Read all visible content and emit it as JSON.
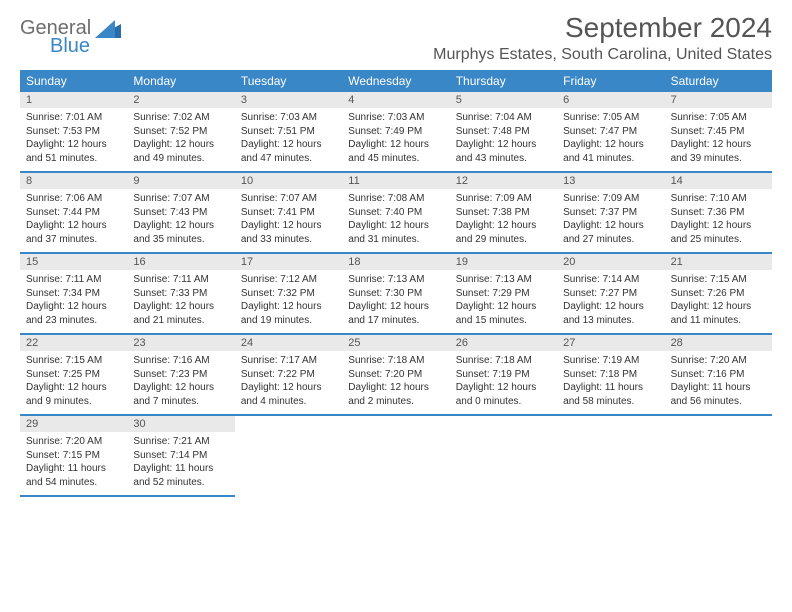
{
  "logo": {
    "general": "General",
    "blue": "Blue"
  },
  "title": "September 2024",
  "location": "Murphys Estates, South Carolina, United States",
  "colors": {
    "headerBg": "#3a87c8",
    "dayNumBg": "#e9e9e9",
    "border": "#3a87c8"
  },
  "dayHeaders": [
    "Sunday",
    "Monday",
    "Tuesday",
    "Wednesday",
    "Thursday",
    "Friday",
    "Saturday"
  ],
  "weeks": [
    [
      {
        "num": "1",
        "sunrise": "Sunrise: 7:01 AM",
        "sunset": "Sunset: 7:53 PM",
        "daylight": "Daylight: 12 hours and 51 minutes."
      },
      {
        "num": "2",
        "sunrise": "Sunrise: 7:02 AM",
        "sunset": "Sunset: 7:52 PM",
        "daylight": "Daylight: 12 hours and 49 minutes."
      },
      {
        "num": "3",
        "sunrise": "Sunrise: 7:03 AM",
        "sunset": "Sunset: 7:51 PM",
        "daylight": "Daylight: 12 hours and 47 minutes."
      },
      {
        "num": "4",
        "sunrise": "Sunrise: 7:03 AM",
        "sunset": "Sunset: 7:49 PM",
        "daylight": "Daylight: 12 hours and 45 minutes."
      },
      {
        "num": "5",
        "sunrise": "Sunrise: 7:04 AM",
        "sunset": "Sunset: 7:48 PM",
        "daylight": "Daylight: 12 hours and 43 minutes."
      },
      {
        "num": "6",
        "sunrise": "Sunrise: 7:05 AM",
        "sunset": "Sunset: 7:47 PM",
        "daylight": "Daylight: 12 hours and 41 minutes."
      },
      {
        "num": "7",
        "sunrise": "Sunrise: 7:05 AM",
        "sunset": "Sunset: 7:45 PM",
        "daylight": "Daylight: 12 hours and 39 minutes."
      }
    ],
    [
      {
        "num": "8",
        "sunrise": "Sunrise: 7:06 AM",
        "sunset": "Sunset: 7:44 PM",
        "daylight": "Daylight: 12 hours and 37 minutes."
      },
      {
        "num": "9",
        "sunrise": "Sunrise: 7:07 AM",
        "sunset": "Sunset: 7:43 PM",
        "daylight": "Daylight: 12 hours and 35 minutes."
      },
      {
        "num": "10",
        "sunrise": "Sunrise: 7:07 AM",
        "sunset": "Sunset: 7:41 PM",
        "daylight": "Daylight: 12 hours and 33 minutes."
      },
      {
        "num": "11",
        "sunrise": "Sunrise: 7:08 AM",
        "sunset": "Sunset: 7:40 PM",
        "daylight": "Daylight: 12 hours and 31 minutes."
      },
      {
        "num": "12",
        "sunrise": "Sunrise: 7:09 AM",
        "sunset": "Sunset: 7:38 PM",
        "daylight": "Daylight: 12 hours and 29 minutes."
      },
      {
        "num": "13",
        "sunrise": "Sunrise: 7:09 AM",
        "sunset": "Sunset: 7:37 PM",
        "daylight": "Daylight: 12 hours and 27 minutes."
      },
      {
        "num": "14",
        "sunrise": "Sunrise: 7:10 AM",
        "sunset": "Sunset: 7:36 PM",
        "daylight": "Daylight: 12 hours and 25 minutes."
      }
    ],
    [
      {
        "num": "15",
        "sunrise": "Sunrise: 7:11 AM",
        "sunset": "Sunset: 7:34 PM",
        "daylight": "Daylight: 12 hours and 23 minutes."
      },
      {
        "num": "16",
        "sunrise": "Sunrise: 7:11 AM",
        "sunset": "Sunset: 7:33 PM",
        "daylight": "Daylight: 12 hours and 21 minutes."
      },
      {
        "num": "17",
        "sunrise": "Sunrise: 7:12 AM",
        "sunset": "Sunset: 7:32 PM",
        "daylight": "Daylight: 12 hours and 19 minutes."
      },
      {
        "num": "18",
        "sunrise": "Sunrise: 7:13 AM",
        "sunset": "Sunset: 7:30 PM",
        "daylight": "Daylight: 12 hours and 17 minutes."
      },
      {
        "num": "19",
        "sunrise": "Sunrise: 7:13 AM",
        "sunset": "Sunset: 7:29 PM",
        "daylight": "Daylight: 12 hours and 15 minutes."
      },
      {
        "num": "20",
        "sunrise": "Sunrise: 7:14 AM",
        "sunset": "Sunset: 7:27 PM",
        "daylight": "Daylight: 12 hours and 13 minutes."
      },
      {
        "num": "21",
        "sunrise": "Sunrise: 7:15 AM",
        "sunset": "Sunset: 7:26 PM",
        "daylight": "Daylight: 12 hours and 11 minutes."
      }
    ],
    [
      {
        "num": "22",
        "sunrise": "Sunrise: 7:15 AM",
        "sunset": "Sunset: 7:25 PM",
        "daylight": "Daylight: 12 hours and 9 minutes."
      },
      {
        "num": "23",
        "sunrise": "Sunrise: 7:16 AM",
        "sunset": "Sunset: 7:23 PM",
        "daylight": "Daylight: 12 hours and 7 minutes."
      },
      {
        "num": "24",
        "sunrise": "Sunrise: 7:17 AM",
        "sunset": "Sunset: 7:22 PM",
        "daylight": "Daylight: 12 hours and 4 minutes."
      },
      {
        "num": "25",
        "sunrise": "Sunrise: 7:18 AM",
        "sunset": "Sunset: 7:20 PM",
        "daylight": "Daylight: 12 hours and 2 minutes."
      },
      {
        "num": "26",
        "sunrise": "Sunrise: 7:18 AM",
        "sunset": "Sunset: 7:19 PM",
        "daylight": "Daylight: 12 hours and 0 minutes."
      },
      {
        "num": "27",
        "sunrise": "Sunrise: 7:19 AM",
        "sunset": "Sunset: 7:18 PM",
        "daylight": "Daylight: 11 hours and 58 minutes."
      },
      {
        "num": "28",
        "sunrise": "Sunrise: 7:20 AM",
        "sunset": "Sunset: 7:16 PM",
        "daylight": "Daylight: 11 hours and 56 minutes."
      }
    ],
    [
      {
        "num": "29",
        "sunrise": "Sunrise: 7:20 AM",
        "sunset": "Sunset: 7:15 PM",
        "daylight": "Daylight: 11 hours and 54 minutes."
      },
      {
        "num": "30",
        "sunrise": "Sunrise: 7:21 AM",
        "sunset": "Sunset: 7:14 PM",
        "daylight": "Daylight: 11 hours and 52 minutes."
      },
      null,
      null,
      null,
      null,
      null
    ]
  ]
}
